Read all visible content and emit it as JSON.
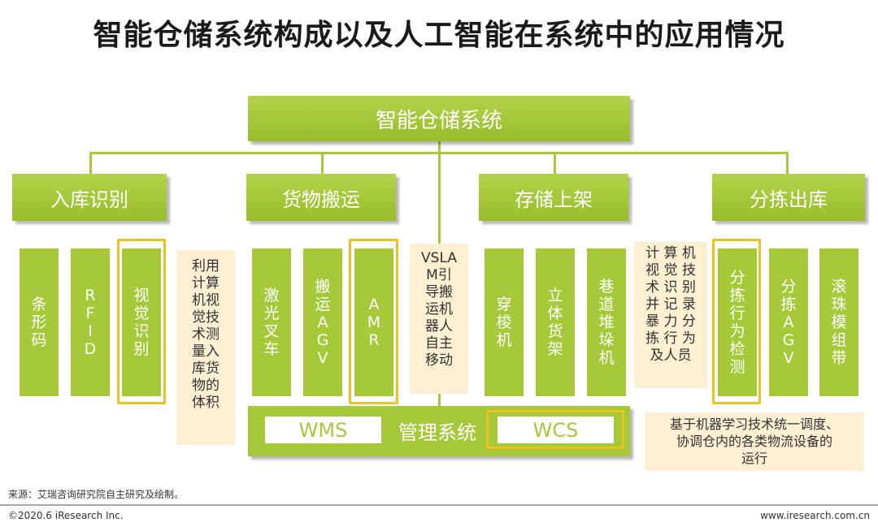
{
  "title": "智能仓储系统构成以及人工智能在系统中的应用情况",
  "root": {
    "label": "智能仓储系统"
  },
  "categories": [
    {
      "label": "入库识别"
    },
    {
      "label": "货物搬运"
    },
    {
      "label": "存储上架"
    },
    {
      "label": "分拣出库"
    }
  ],
  "items": [
    {
      "label": "条\n形\n码"
    },
    {
      "label": "R\nF\nI\nD"
    },
    {
      "label": "视\n觉\n识\n别"
    },
    {
      "label": "激\n光\n叉\n车"
    },
    {
      "label": "搬\n运\nA\nG\nV"
    },
    {
      "label": "A\nM\nR"
    },
    {
      "label": "穿\n梭\n机"
    },
    {
      "label": "立\n体\n货\n架"
    },
    {
      "label": "巷\n道\n堆\n垛\n机"
    },
    {
      "label": "分\n拣\n行\n为\n检\n测"
    },
    {
      "label": "分\n拣\nA\nG\nV"
    },
    {
      "label": "滚\n珠\n模\n组\n带"
    }
  ],
  "notes": {
    "inbound": "利用\n计算\n机视\n觉技\n术测\n量入\n库货\n物的\n体积",
    "vslam": "VSLA\nM引\n导搬\n运机\n器人\n自主\n移动",
    "storage": "计  算  机\n视  觉  技\n术  识  别\n并  记  录\n暴  力  分\n拣  行  为\n及人员",
    "dispatch": "基于机器学习技术统一调度、\n协调仓内的各类物流设备的\n运行"
  },
  "management": {
    "wms": "WMS",
    "center": "管理系统",
    "wcs": "WCS"
  },
  "footer": {
    "source": "来源：艾瑞咨询研究院自主研究及绘制。",
    "copyright": "©2020.6 iResearch Inc.",
    "website": "www.iresearch.com.cn"
  },
  "colors": {
    "green": "#a6c93a",
    "highlight": "#f0c020",
    "note_bg": "#fcefd2"
  }
}
